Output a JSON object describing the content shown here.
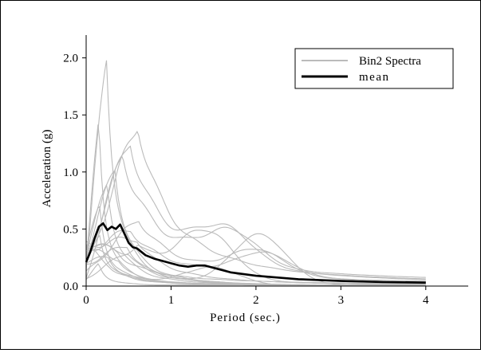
{
  "chart_data": {
    "type": "line",
    "xlabel": "Period  (sec.)",
    "ylabel": "Acceleration  (g)",
    "xlim": [
      0,
      4.5
    ],
    "ylim": [
      0,
      2.2
    ],
    "x_ticks": [
      0,
      1,
      2,
      3,
      4
    ],
    "y_ticks": [
      0.0,
      0.5,
      1.0,
      1.5,
      2.0
    ],
    "x_tick_labels": [
      "0",
      "1",
      "2",
      "3",
      "4"
    ],
    "y_tick_labels": [
      "0.0",
      "0.5",
      "1.0",
      "1.5",
      "2.0"
    ],
    "grid": false,
    "legend": {
      "placement": "top-right",
      "entries": [
        {
          "label": "Bin2 Spectra",
          "color": "#bbbbbb"
        },
        {
          "label": "mean",
          "color": "#000000"
        }
      ]
    },
    "colors": {
      "spectra": "#bbbbbb",
      "mean": "#000000"
    },
    "spectra_count": 20,
    "spectra_style": "individual response spectra drawn as thin light-gray curves",
    "spectra_anchor_peak_g": [
      2.03,
      1.47,
      1.45,
      1.3,
      1.2,
      1.05,
      0.9,
      0.7,
      0.6,
      0.5
    ],
    "series": [
      {
        "x": [
          0,
          0.05,
          0.1,
          0.15,
          0.2,
          0.25,
          0.3,
          0.35,
          0.4,
          0.45,
          0.5,
          0.55,
          0.6,
          0.7,
          0.8,
          0.9,
          1.0,
          1.1,
          1.2,
          1.3,
          1.4,
          1.5,
          1.7,
          2.0,
          2.5,
          3.0,
          3.5,
          4.0
        ],
        "y": [
          0.21,
          0.3,
          0.42,
          0.52,
          0.55,
          0.49,
          0.52,
          0.5,
          0.54,
          0.46,
          0.38,
          0.34,
          0.33,
          0.27,
          0.24,
          0.22,
          0.2,
          0.18,
          0.17,
          0.18,
          0.18,
          0.16,
          0.12,
          0.09,
          0.06,
          0.045,
          0.035,
          0.03
        ]
      }
    ]
  }
}
